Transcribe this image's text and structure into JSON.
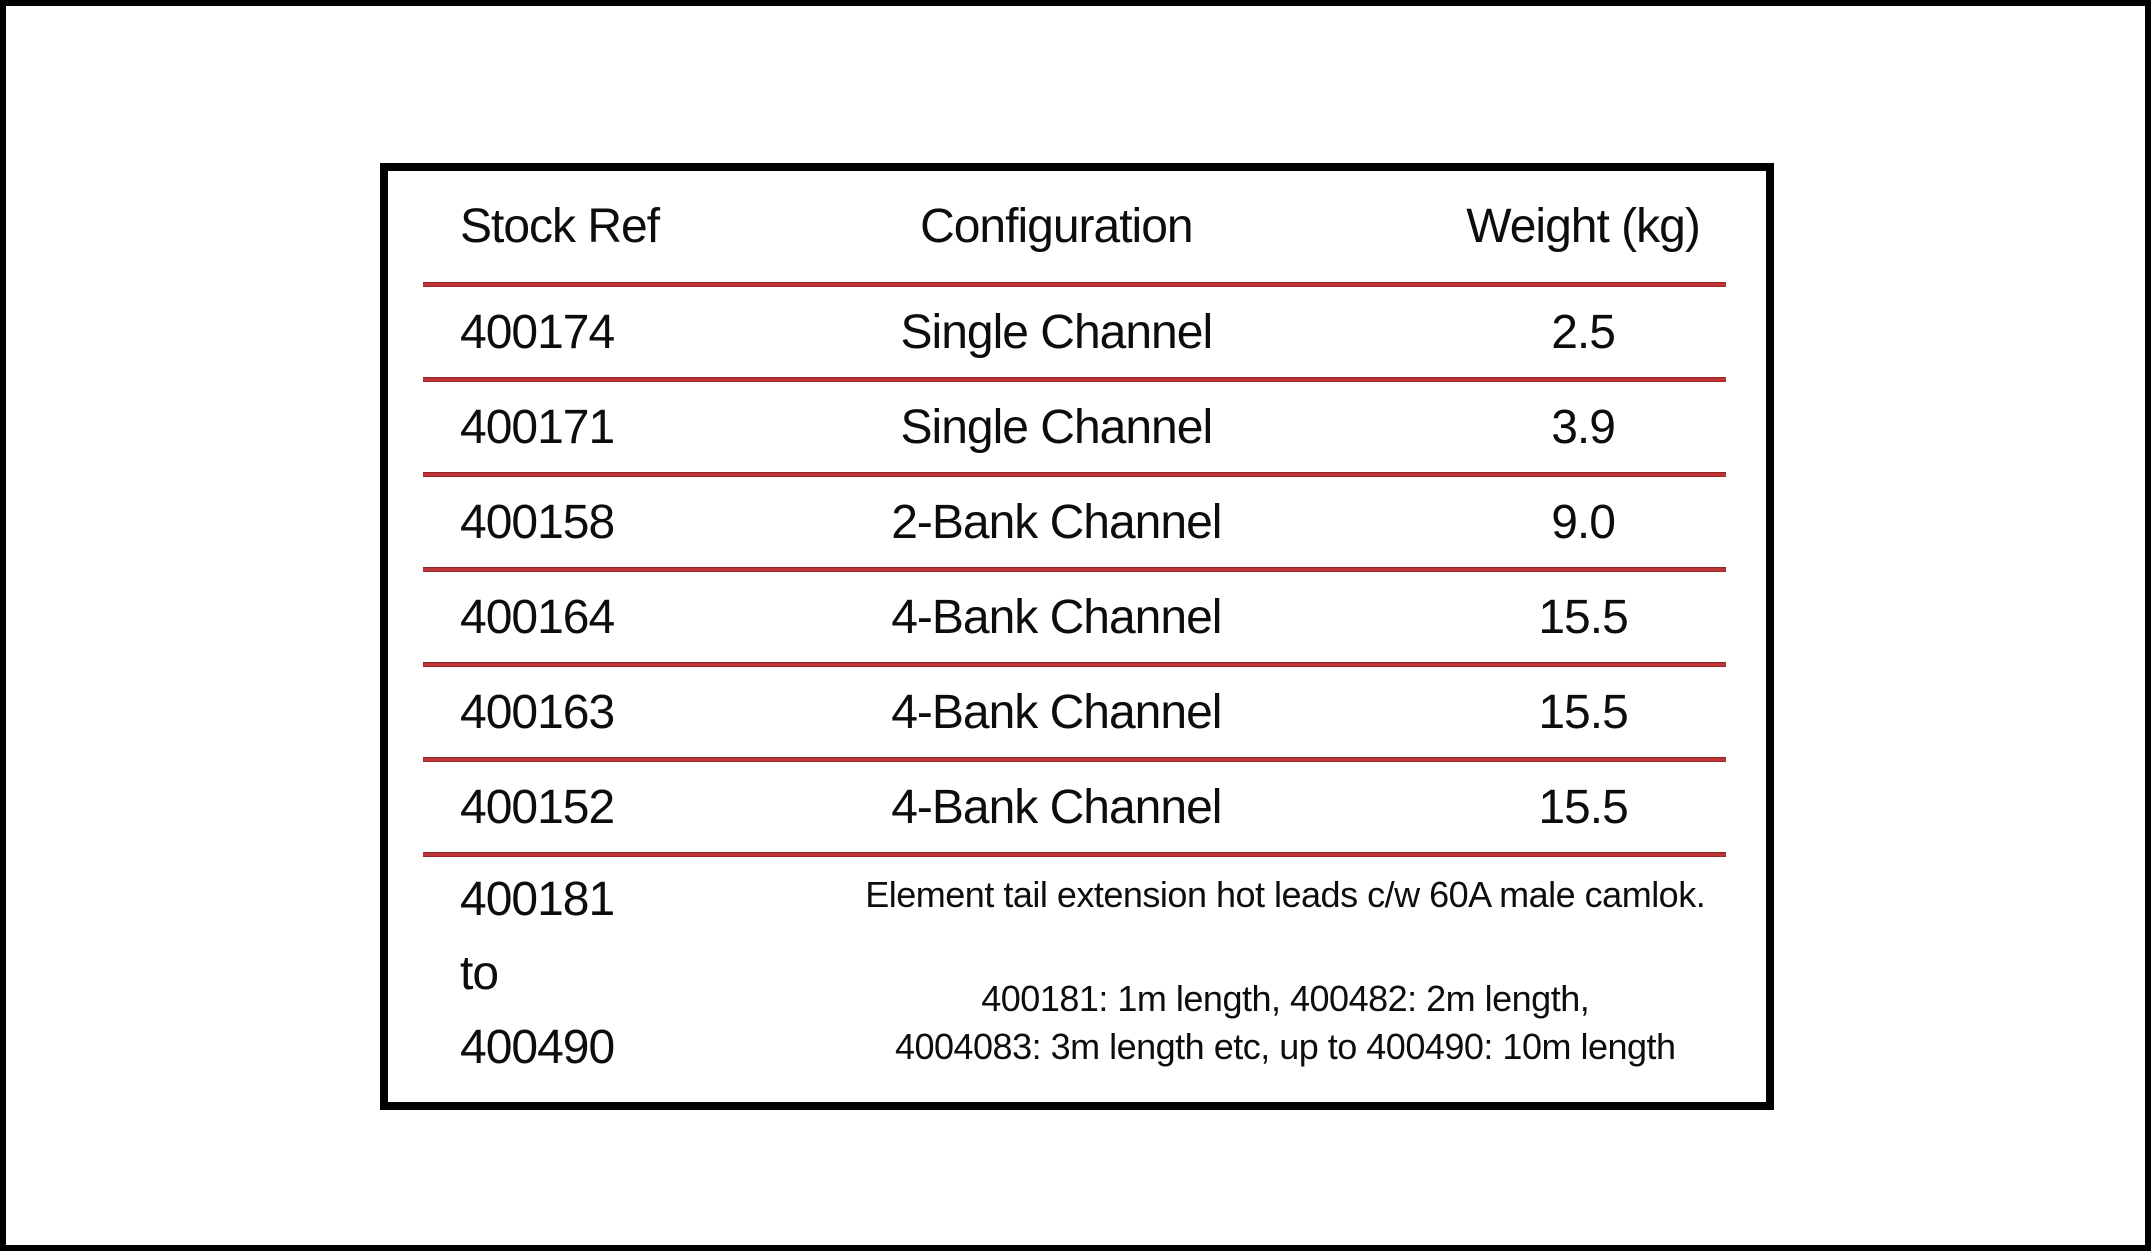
{
  "table": {
    "headers": [
      "Stock Ref",
      "Configuration",
      "Weight (kg)"
    ],
    "rows": [
      {
        "stock_ref": "400174",
        "configuration": "Single Channel",
        "weight": "2.5"
      },
      {
        "stock_ref": "400171",
        "configuration": "Single Channel",
        "weight": "3.9"
      },
      {
        "stock_ref": "400158",
        "configuration": "2-Bank Channel",
        "weight": "9.0"
      },
      {
        "stock_ref": "400164",
        "configuration": "4-Bank Channel",
        "weight": "15.5"
      },
      {
        "stock_ref": "400163",
        "configuration": "4-Bank Channel",
        "weight": "15.5"
      },
      {
        "stock_ref": "400152",
        "configuration": "4-Bank Channel",
        "weight": "15.5"
      }
    ],
    "footer_row": {
      "stock_ref_line1": "400181",
      "stock_ref_line2": "to",
      "stock_ref_line3": "400490",
      "description_line1": "Element tail extension hot leads c/w 60A male camlok.",
      "description_line2": "400181: 1m length, 400482: 2m length,",
      "description_line3": "4004083: 3m length etc, up to 400490: 10m length"
    }
  },
  "colors": {
    "separator_red": "#A93030",
    "border_black": "#000000",
    "background": "#FFFFFF"
  }
}
